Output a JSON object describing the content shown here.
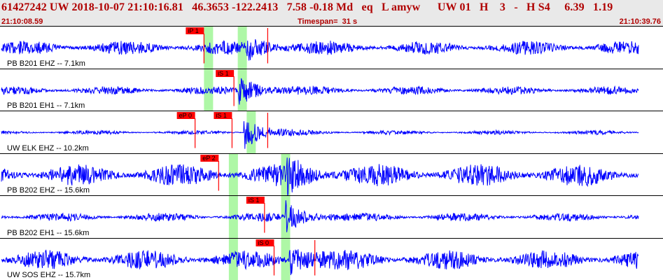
{
  "header": {
    "title": "61427242 UW 2018-10-07 21:10:16.81   46.3653 -122.2413   7.58 -0.18 Md   eq   L amyw      UW 01   H    3   -   H S4     6.39   1.19",
    "start_time": "21:10:08.59",
    "timespan": "Timespan=  31 s",
    "end_time": "21:10:39.76"
  },
  "colors": {
    "header_bg": "#e9e9e9",
    "header_text": "#b00000",
    "trace": "#0000ff",
    "pick": "#ff0000",
    "window": "#aef7a6"
  },
  "panels": [
    {
      "label": "PB B201 EHZ -- 7.1km",
      "amp": 10,
      "picks": [
        {
          "label": "iP 1",
          "t": 0.318
        },
        {
          "label": "",
          "t": 0.418
        }
      ],
      "windows": [
        0.318,
        0.371
      ],
      "event_t": 0.384,
      "event_amp": 18
    },
    {
      "label": "PB B201 EH1 -- 7.1km",
      "amp": 6,
      "picks": [
        {
          "label": "iS 1",
          "t": 0.365
        }
      ],
      "windows": [
        0.318,
        0.371
      ],
      "event_t": 0.372,
      "event_amp": 22
    },
    {
      "label": "UW ELK EHZ -- 10.2km",
      "amp": 3,
      "picks": [
        {
          "label": "eP 0",
          "t": 0.304
        },
        {
          "label": "iS 1",
          "t": 0.362
        },
        {
          "label": "",
          "t": 0.418
        }
      ],
      "windows": [
        0.385
      ],
      "event_t": 0.38,
      "event_amp": 25
    },
    {
      "label": "PB B202 EHZ -- 15.6km",
      "amp": 16,
      "picks": [
        {
          "label": "eP 2",
          "t": 0.341
        }
      ],
      "windows": [
        0.357,
        0.439
      ],
      "event_t": 0.447,
      "event_amp": 20
    },
    {
      "label": "PB B202 EH1 -- 15.6km",
      "amp": 6,
      "picks": [
        {
          "label": "iS 1",
          "t": 0.413
        }
      ],
      "windows": [
        0.357,
        0.439
      ],
      "event_t": 0.445,
      "event_amp": 22
    },
    {
      "label": "UW SOS EHZ -- 15.7km",
      "amp": 14,
      "picks": [
        {
          "label": "iS 0",
          "t": 0.428
        },
        {
          "label": "",
          "t": 0.492
        }
      ],
      "windows": [
        0.357,
        0.439
      ],
      "event_t": 0.452,
      "event_amp": 22
    }
  ]
}
